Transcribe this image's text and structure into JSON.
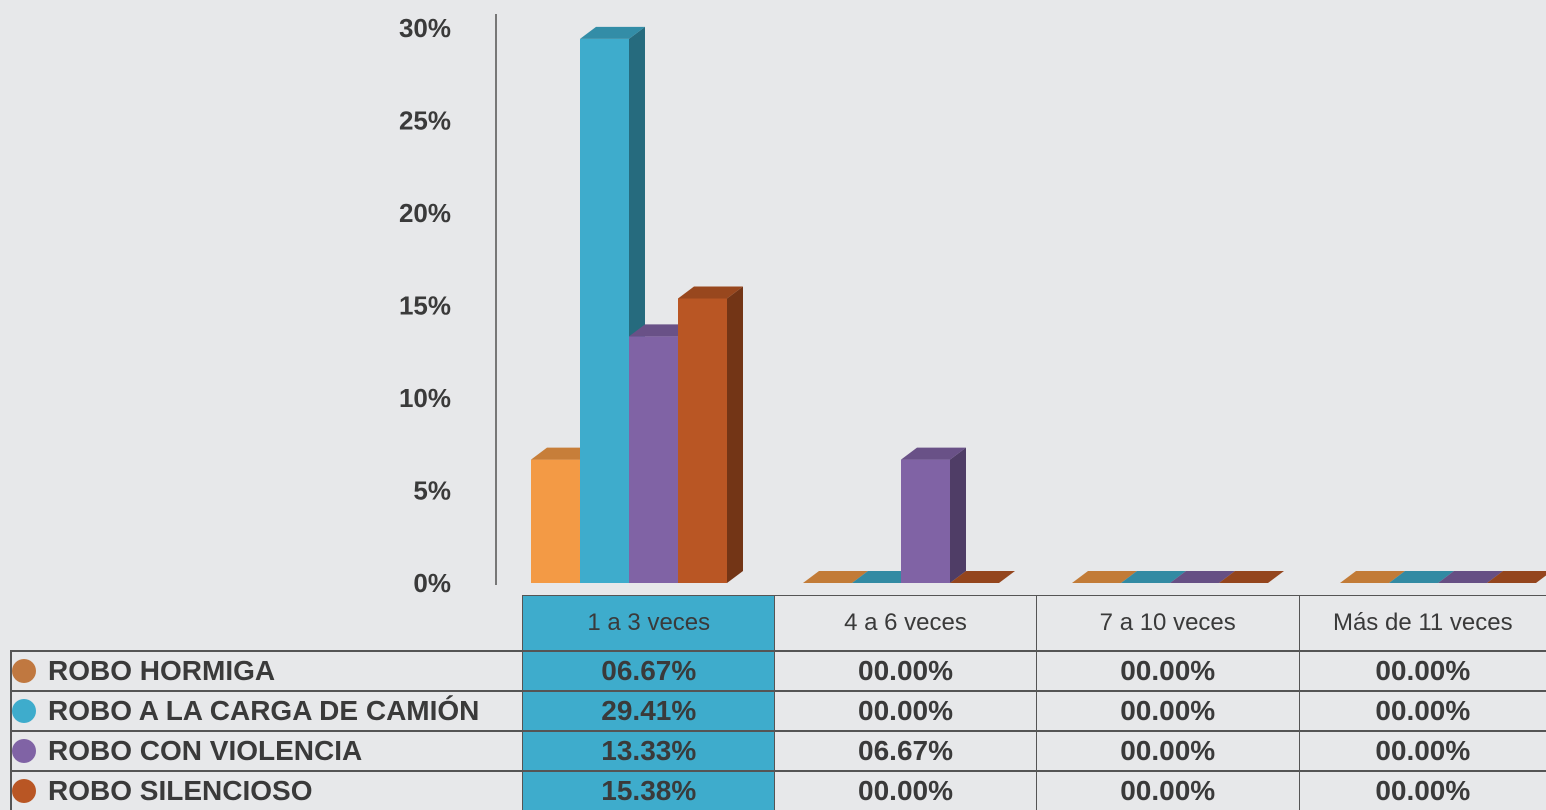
{
  "chart_data": {
    "type": "bar",
    "style": "3d-grouped",
    "categories": [
      "1 a 3 veces",
      "4 a 6 veces",
      "7 a 10 veces",
      "Más de 11 veces"
    ],
    "highlighted_category": "1 a 3 veces",
    "ylim": [
      0,
      30
    ],
    "yticks": [
      "0%",
      "5%",
      "10%",
      "15%",
      "20%",
      "25%",
      "30%"
    ],
    "series": [
      {
        "name": "ROBO HORMIGA",
        "color": "#f39a45",
        "values": [
          6.67,
          0,
          0,
          0
        ],
        "labels": [
          "06.67%",
          "00.00%",
          "00.00%",
          "00.00%"
        ]
      },
      {
        "name": "ROBO A LA CARGA DE CAMIÓN",
        "color": "#3eaccc",
        "values": [
          29.41,
          0,
          0,
          0
        ],
        "labels": [
          "29.41%",
          "00.00%",
          "00.00%",
          "00.00%"
        ]
      },
      {
        "name": "ROBO CON VIOLENCIA",
        "color": "#8063a5",
        "values": [
          13.33,
          6.67,
          0,
          0
        ],
        "labels": [
          "13.33%",
          "06.67%",
          "00.00%",
          "00.00%"
        ]
      },
      {
        "name": "ROBO SILENCIOSO",
        "color": "#b95624",
        "values": [
          15.38,
          0,
          0,
          0
        ],
        "labels": [
          "15.38%",
          "00.00%",
          "00.00%",
          "00.00%"
        ]
      }
    ],
    "legend": "table-below"
  },
  "colors": {
    "background": "#e7e8ea",
    "highlight": "#3eaccc",
    "dot_hormiga": "#c07840"
  }
}
